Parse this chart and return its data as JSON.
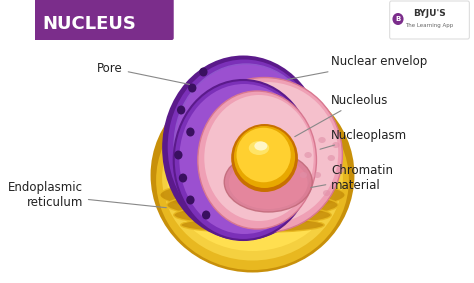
{
  "title": "NUCLEUS",
  "title_bg_color": "#7B2D8B",
  "title_text_color": "#FFFFFF",
  "bg_color": "#FFFFFF",
  "byju_text": "BYJU'S",
  "byju_sub": "The Learning App",
  "colors": {
    "golden_dark": "#C8900A",
    "golden_mid": "#E8B820",
    "golden_light": "#F5D040",
    "golden_bright": "#FFDF50",
    "purple_dark": "#5B1A8B",
    "purple_mid": "#7B30B8",
    "purple_light": "#9B50D0",
    "pink_dark": "#D87890",
    "pink_mid": "#EFA0B5",
    "pink_light": "#F5C0CC",
    "nucleolus_dark": "#C87000",
    "nucleolus_mid": "#E8A800",
    "nucleolus_light": "#FFD030",
    "nucleolus_bright": "#FFE870",
    "dot_color": "#3A1060"
  },
  "label_fontsize": 8.5,
  "label_color": "#222222",
  "line_color": "#888888"
}
